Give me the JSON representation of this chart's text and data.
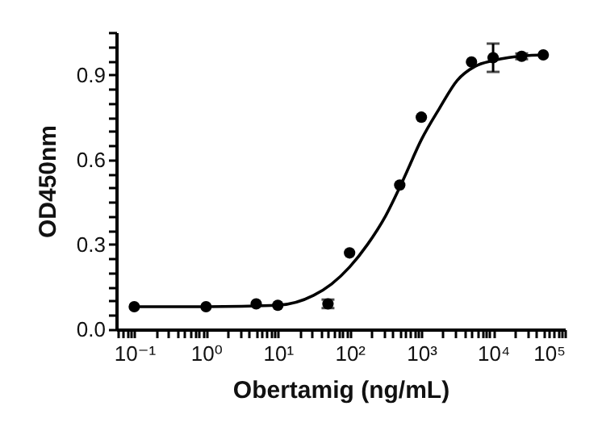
{
  "chart_data": {
    "type": "scatter",
    "xlabel": "Obertamig (ng/mL)",
    "ylabel": "OD450nm",
    "log": "x",
    "grid": false,
    "marker": "circle",
    "line_style": "solid",
    "xlim": [
      0.056,
      100000
    ],
    "xticks": [
      {
        "value": 0.06,
        "label": null
      },
      {
        "value": 0.07,
        "label": null
      },
      {
        "value": 0.08,
        "label": null
      },
      {
        "value": 0.09,
        "label": null
      },
      {
        "value": 0.1,
        "label": "10⁻¹"
      },
      {
        "value": 0.2,
        "label": null
      },
      {
        "value": 0.3,
        "label": null
      },
      {
        "value": 0.4,
        "label": null
      },
      {
        "value": 0.5,
        "label": null
      },
      {
        "value": 0.6,
        "label": null
      },
      {
        "value": 0.7,
        "label": null
      },
      {
        "value": 0.8,
        "label": null
      },
      {
        "value": 0.9,
        "label": null
      },
      {
        "value": 1,
        "label": "10⁰"
      },
      {
        "value": 2,
        "label": null
      },
      {
        "value": 3,
        "label": null
      },
      {
        "value": 4,
        "label": null
      },
      {
        "value": 5,
        "label": null
      },
      {
        "value": 6,
        "label": null
      },
      {
        "value": 7,
        "label": null
      },
      {
        "value": 8,
        "label": null
      },
      {
        "value": 9,
        "label": null
      },
      {
        "value": 10,
        "label": "10¹"
      },
      {
        "value": 20,
        "label": null
      },
      {
        "value": 30,
        "label": null
      },
      {
        "value": 40,
        "label": null
      },
      {
        "value": 50,
        "label": null
      },
      {
        "value": 60,
        "label": null
      },
      {
        "value": 70,
        "label": null
      },
      {
        "value": 80,
        "label": null
      },
      {
        "value": 90,
        "label": null
      },
      {
        "value": 100,
        "label": "10²"
      },
      {
        "value": 200,
        "label": null
      },
      {
        "value": 300,
        "label": null
      },
      {
        "value": 400,
        "label": null
      },
      {
        "value": 500,
        "label": null
      },
      {
        "value": 600,
        "label": null
      },
      {
        "value": 700,
        "label": null
      },
      {
        "value": 800,
        "label": null
      },
      {
        "value": 900,
        "label": null
      },
      {
        "value": 1000,
        "label": "10³"
      },
      {
        "value": 2000,
        "label": null
      },
      {
        "value": 3000,
        "label": null
      },
      {
        "value": 4000,
        "label": null
      },
      {
        "value": 5000,
        "label": null
      },
      {
        "value": 6000,
        "label": null
      },
      {
        "value": 7000,
        "label": null
      },
      {
        "value": 8000,
        "label": null
      },
      {
        "value": 9000,
        "label": null
      },
      {
        "value": 10000,
        "label": "10⁴"
      },
      {
        "value": 20000,
        "label": null
      },
      {
        "value": 30000,
        "label": null
      },
      {
        "value": 40000,
        "label": null
      },
      {
        "value": 50000,
        "label": null
      },
      {
        "value": 60000,
        "label": null
      },
      {
        "value": 70000,
        "label": null
      },
      {
        "value": 80000,
        "label": null
      },
      {
        "value": 90000,
        "label": null
      },
      {
        "value": 100000,
        "label": "10⁵"
      }
    ],
    "ylim": [
      0,
      1.05
    ],
    "yticks": [
      {
        "value": 0,
        "label": "0.0"
      },
      {
        "value": 0.05,
        "label": null
      },
      {
        "value": 0.1,
        "label": null
      },
      {
        "value": 0.15,
        "label": null
      },
      {
        "value": 0.2,
        "label": null
      },
      {
        "value": 0.25,
        "label": null
      },
      0.3,
      {
        "value": 0.35,
        "label": null
      },
      {
        "value": 0.4,
        "label": null
      },
      {
        "value": 0.45,
        "label": null
      },
      {
        "value": 0.5,
        "label": null
      },
      {
        "value": 0.55,
        "label": null
      },
      0.6,
      {
        "value": 0.65,
        "label": null
      },
      {
        "value": 0.7,
        "label": null
      },
      {
        "value": 0.75,
        "label": null
      },
      {
        "value": 0.8,
        "label": null
      },
      {
        "value": 0.85,
        "label": null
      },
      0.9,
      {
        "value": 0.95,
        "label": null
      },
      {
        "value": 1,
        "label": null
      },
      {
        "value": 1.05,
        "label": null
      }
    ],
    "series": [
      {
        "color": "#000000",
        "x": [
          0.1,
          1,
          5,
          10,
          50,
          100,
          500,
          1000,
          5000,
          10000,
          25000,
          50000
        ],
        "values": [
          0.08,
          0.08,
          0.09,
          0.085,
          0.09,
          0.27,
          0.51,
          0.75,
          0.945,
          0.96,
          0.965,
          0.97
        ],
        "errors": [
          null,
          null,
          null,
          null,
          0.015,
          null,
          null,
          null,
          null,
          0.05,
          0.01,
          null
        ]
      },
      {
        "type": "line",
        "marker": "none",
        "color": "#000000",
        "x": [
          0.1,
          1,
          10,
          31.6,
          56.2,
          100,
          177.8,
          316.2,
          562.3,
          1000,
          1778,
          3162,
          5623,
          10000,
          31623,
          50000
        ],
        "values": [
          0.08,
          0.08,
          0.085,
          0.12,
          0.16,
          0.22,
          0.3,
          0.4,
          0.53,
          0.67,
          0.78,
          0.88,
          0.93,
          0.95,
          0.968,
          0.97
        ]
      }
    ]
  }
}
